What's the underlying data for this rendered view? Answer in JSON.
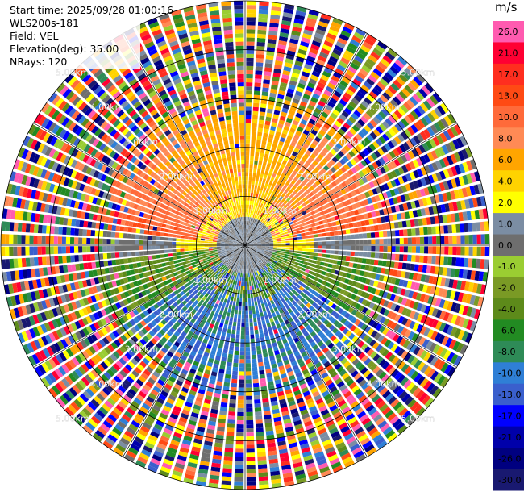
{
  "info": {
    "start_time": "Start time: 2025/09/28 01:00:16",
    "instrument": "WLS200s-181",
    "field": "Field: VEL",
    "elevation": "Elevation(deg): 35.00",
    "nrays": "NRays: 120"
  },
  "colorbar": {
    "unit": "m/s",
    "bins": [
      {
        "label": "26.0",
        "color": "#ff5bb0"
      },
      {
        "label": "21.0",
        "color": "#ff0033"
      },
      {
        "label": "17.0",
        "color": "#ff2e1f"
      },
      {
        "label": "13.0",
        "color": "#ff4a14"
      },
      {
        "label": "10.0",
        "color": "#ff6a3a"
      },
      {
        "label": "8.0",
        "color": "#ff8a55"
      },
      {
        "label": "6.0",
        "color": "#ffa500"
      },
      {
        "label": "4.0",
        "color": "#ffd300"
      },
      {
        "label": "2.0",
        "color": "#ffff00"
      },
      {
        "label": "1.0",
        "color": "#7b8da3"
      },
      {
        "label": "0.0",
        "color": "#6e6e6e"
      },
      {
        "label": "-1.0",
        "color": "#9acd32"
      },
      {
        "label": "-2.0",
        "color": "#7a9a25"
      },
      {
        "label": "-4.0",
        "color": "#5d8a1a"
      },
      {
        "label": "-6.0",
        "color": "#228b22"
      },
      {
        "label": "-8.0",
        "color": "#2e8b57"
      },
      {
        "label": "-10.0",
        "color": "#2f7fd6"
      },
      {
        "label": "-13.0",
        "color": "#3a5fcd"
      },
      {
        "label": "-17.0",
        "color": "#0000ff"
      },
      {
        "label": "-21.0",
        "color": "#0000aa"
      },
      {
        "label": "-26.0",
        "color": "#000080"
      },
      {
        "label": "-30.0",
        "color": "#191970"
      }
    ]
  },
  "chart_data": {
    "type": "heatmap",
    "subtype": "polar-ppi",
    "field": "VEL",
    "unit": "m/s",
    "nrays": 120,
    "elevation_deg": 35.0,
    "max_range_km": 5.0,
    "range_rings_km": [
      1.0,
      2.0,
      3.0,
      4.0,
      5.0
    ],
    "ring_labels": [
      "1.00km",
      "2.00km",
      "3.00km",
      "4.00km",
      "5.00km"
    ],
    "spokes_deg": [
      0,
      30,
      60,
      90,
      120,
      150,
      180,
      210,
      240,
      270,
      300,
      330
    ],
    "pattern": {
      "near_field": "near-zero (gray) within ~0.5 km",
      "north_half_inner_3km": "positive velocities 4 to 13 m/s (yellow to orange-red)",
      "south_half_inner_3km": "negative velocities -2 to -13 m/s (green to blue)",
      "beyond_3km": "noisy full-range values"
    }
  }
}
